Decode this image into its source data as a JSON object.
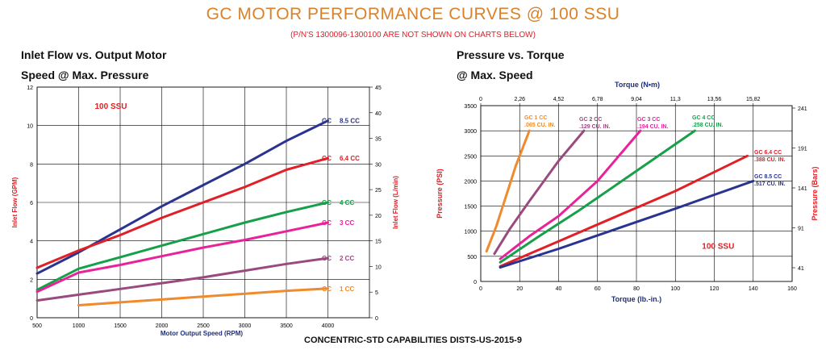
{
  "header": {
    "title": "GC MOTOR PERFORMANCE CURVES @ 100 SSU",
    "subtitle": "(P/N'S 1300096-1300100 ARE NOT SHOWN ON CHARTS BELOW)",
    "footer": "CONCENTRIC-STD CAPABILITIES DISTS-US-2015-9"
  },
  "colors": {
    "title": "#d9822b",
    "red": "#e01f26",
    "navy": "#2a3490",
    "green": "#16a04a",
    "magenta": "#e8239a",
    "plum": "#9a4a7e",
    "orange": "#f08a2c",
    "axis": "#1f2f7a"
  },
  "chart_data": [
    {
      "type": "line",
      "heading_line1": "Inlet Flow vs. Output Motor",
      "heading_line2": "Speed @ Max. Pressure",
      "annotation": "100 SSU",
      "xlabel": "Motor Output Speed (RPM)",
      "ylabel": "Inlet Flow (GPM)",
      "y2label": "Inlet Flow (L/min)",
      "xlim": [
        500,
        4500
      ],
      "ylim": [
        0,
        12
      ],
      "y2lim": [
        0,
        45
      ],
      "x_ticks": [
        500,
        1000,
        1500,
        2000,
        2500,
        3000,
        3500,
        4000
      ],
      "y_ticks": [
        0,
        2,
        4,
        6,
        8,
        10,
        12
      ],
      "y2_ticks": [
        0,
        5,
        10,
        15,
        20,
        25,
        30,
        35,
        40,
        45
      ],
      "series": [
        {
          "name": "GC 8.5 CC",
          "prefix": "GC",
          "label": "8.5 CC",
          "color": "navy",
          "x": [
            500,
            1000,
            1500,
            2000,
            2500,
            3000,
            3500,
            4000
          ],
          "y": [
            2.3,
            3.4,
            4.6,
            5.8,
            6.9,
            8.0,
            9.2,
            10.25
          ]
        },
        {
          "name": "GC 6.4 CC",
          "prefix": "GC",
          "label": "6.4 CC",
          "color": "red",
          "x": [
            500,
            1000,
            1500,
            2000,
            2500,
            3000,
            3500,
            4000
          ],
          "y": [
            2.6,
            3.5,
            4.3,
            5.2,
            6.0,
            6.8,
            7.7,
            8.3
          ]
        },
        {
          "name": "GC 4 CC",
          "prefix": "GC",
          "label": "4 CC",
          "color": "green",
          "x": [
            500,
            1000,
            1500,
            2000,
            2500,
            3000,
            3500,
            4000
          ],
          "y": [
            1.45,
            2.55,
            3.15,
            3.75,
            4.35,
            4.95,
            5.5,
            6.0
          ]
        },
        {
          "name": "GC 3 CC",
          "prefix": "GC",
          "label": "3 CC",
          "color": "magenta",
          "x": [
            500,
            1000,
            1500,
            2000,
            2500,
            3000,
            3500,
            4000
          ],
          "y": [
            1.35,
            2.35,
            2.75,
            3.2,
            3.65,
            4.05,
            4.5,
            4.95
          ]
        },
        {
          "name": "GC 2 CC",
          "prefix": "GC",
          "label": "2 CC",
          "color": "plum",
          "x": [
            500,
            1000,
            1500,
            2000,
            2500,
            3000,
            3500,
            4000
          ],
          "y": [
            0.9,
            1.2,
            1.5,
            1.8,
            2.1,
            2.45,
            2.8,
            3.1
          ]
        },
        {
          "name": "GC 1 CC",
          "prefix": "GC",
          "label": "1 CC",
          "color": "orange",
          "x": [
            1000,
            1500,
            2000,
            2500,
            3000,
            3500,
            4000
          ],
          "y": [
            0.65,
            0.8,
            0.95,
            1.1,
            1.25,
            1.4,
            1.52
          ]
        }
      ]
    },
    {
      "type": "line",
      "heading_line1": "Pressure vs. Torque",
      "heading_line2": "@ Max. Speed",
      "annotation": "100 SSU",
      "xlabel": "Torque (lb.-in.)",
      "x2label": "Torque (N•m)",
      "ylabel": "Pressure (PSI)",
      "y2label": "Pressure (Bars)",
      "xlim": [
        0,
        160
      ],
      "ylim": [
        0,
        3500
      ],
      "x_ticks": [
        0,
        20,
        40,
        60,
        80,
        100,
        120,
        140,
        160
      ],
      "x2_ticks": [
        "0",
        "2,26",
        "4,52",
        "6,78",
        "9,04",
        "11,3",
        "13,56",
        "15,82"
      ],
      "y_ticks": [
        0,
        500,
        1000,
        1500,
        2000,
        2500,
        3000,
        3500
      ],
      "y2_ticks": [
        "41",
        "91",
        "141",
        "191",
        "241"
      ],
      "series": [
        {
          "name": "GC 1 CC",
          "line1": "GC 1 CC",
          "line2": ".065 CU. IN.",
          "color": "orange",
          "x": [
            3,
            8,
            13,
            18,
            25
          ],
          "y": [
            600,
            1100,
            1700,
            2300,
            3000
          ]
        },
        {
          "name": "GC 2 CC",
          "line1": "GC 2 CC",
          "line2": ".129 CU. IN.",
          "color": "plum",
          "x": [
            7,
            15,
            25,
            40,
            53
          ],
          "y": [
            550,
            1050,
            1600,
            2400,
            3000
          ]
        },
        {
          "name": "GC 3 CC",
          "line1": "GC 3 CC",
          "line2": ".194 CU. IN.",
          "color": "magenta",
          "x": [
            10,
            25,
            40,
            60,
            82
          ],
          "y": [
            450,
            900,
            1300,
            2000,
            3000
          ]
        },
        {
          "name": "GC 4 CC",
          "line1": "GC 4 CC",
          "line2": ".258 CU. IN.",
          "color": "green",
          "x": [
            10,
            30,
            50,
            80,
            110
          ],
          "y": [
            380,
            900,
            1400,
            2200,
            3000
          ]
        },
        {
          "name": "GC 6.4 CC",
          "line1": "GC 6.4 CC",
          "line2": ".388 CU. IN.",
          "color": "red",
          "x": [
            10,
            40,
            70,
            100,
            137
          ],
          "y": [
            300,
            800,
            1300,
            1800,
            2500
          ]
        },
        {
          "name": "GC 8.5 CC",
          "line1": "GC 8.5 CC",
          "line2": ".517 CU. IN.",
          "color": "navy",
          "x": [
            10,
            40,
            70,
            100,
            140
          ],
          "y": [
            280,
            650,
            1050,
            1450,
            2000
          ]
        }
      ]
    }
  ]
}
